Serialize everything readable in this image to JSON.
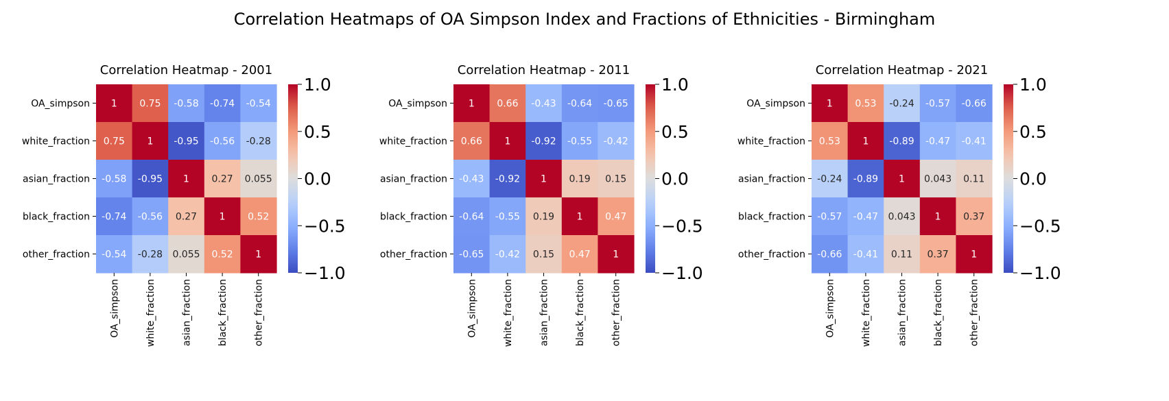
{
  "figure": {
    "suptitle": "Correlation Heatmaps of OA Simpson Index and Fractions of Ethnicities - Birmingham"
  },
  "chart_data": [
    {
      "type": "heatmap",
      "title": "Correlation Heatmap - 2001",
      "row_labels": [
        "OA_simpson",
        "white_fraction",
        "asian_fraction",
        "black_fraction",
        "other_fraction"
      ],
      "col_labels": [
        "OA_simpson",
        "white_fraction",
        "asian_fraction",
        "black_fraction",
        "other_fraction"
      ],
      "values": [
        [
          1,
          0.75,
          -0.58,
          -0.74,
          -0.54
        ],
        [
          0.75,
          1,
          -0.95,
          -0.56,
          -0.28
        ],
        [
          -0.58,
          -0.95,
          1,
          0.27,
          0.055
        ],
        [
          -0.74,
          -0.56,
          0.27,
          1,
          0.52
        ],
        [
          -0.54,
          -0.28,
          0.055,
          0.52,
          1
        ]
      ],
      "cell_labels": [
        [
          "1",
          "0.75",
          "-0.58",
          "-0.74",
          "-0.54"
        ],
        [
          "0.75",
          "1",
          "-0.95",
          "-0.56",
          "-0.28"
        ],
        [
          "-0.58",
          "-0.95",
          "1",
          "0.27",
          "0.055"
        ],
        [
          "-0.74",
          "-0.56",
          "0.27",
          "1",
          "0.52"
        ],
        [
          "-0.54",
          "-0.28",
          "0.055",
          "0.52",
          "1"
        ]
      ],
      "colorbar": {
        "vmin": -1.0,
        "vmax": 1.0,
        "ticks": [
          1.0,
          0.5,
          0.0,
          -0.5,
          -1.0
        ],
        "tick_labels": [
          "1.0",
          "0.5",
          "0.0",
          "−0.5",
          "−1.0"
        ]
      },
      "colormap": "coolwarm"
    },
    {
      "type": "heatmap",
      "title": "Correlation Heatmap - 2011",
      "row_labels": [
        "OA_simpson",
        "white_fraction",
        "asian_fraction",
        "black_fraction",
        "other_fraction"
      ],
      "col_labels": [
        "OA_simpson",
        "white_fraction",
        "asian_fraction",
        "black_fraction",
        "other_fraction"
      ],
      "values": [
        [
          1,
          0.66,
          -0.43,
          -0.64,
          -0.65
        ],
        [
          0.66,
          1,
          -0.92,
          -0.55,
          -0.42
        ],
        [
          -0.43,
          -0.92,
          1,
          0.19,
          0.15
        ],
        [
          -0.64,
          -0.55,
          0.19,
          1,
          0.47
        ],
        [
          -0.65,
          -0.42,
          0.15,
          0.47,
          1
        ]
      ],
      "cell_labels": [
        [
          "1",
          "0.66",
          "-0.43",
          "-0.64",
          "-0.65"
        ],
        [
          "0.66",
          "1",
          "-0.92",
          "-0.55",
          "-0.42"
        ],
        [
          "-0.43",
          "-0.92",
          "1",
          "0.19",
          "0.15"
        ],
        [
          "-0.64",
          "-0.55",
          "0.19",
          "1",
          "0.47"
        ],
        [
          "-0.65",
          "-0.42",
          "0.15",
          "0.47",
          "1"
        ]
      ],
      "colorbar": {
        "vmin": -1.0,
        "vmax": 1.0,
        "ticks": [
          1.0,
          0.5,
          0.0,
          -0.5,
          -1.0
        ],
        "tick_labels": [
          "1.0",
          "0.5",
          "0.0",
          "−0.5",
          "−1.0"
        ]
      },
      "colormap": "coolwarm"
    },
    {
      "type": "heatmap",
      "title": "Correlation Heatmap - 2021",
      "row_labels": [
        "OA_simpson",
        "white_fraction",
        "asian_fraction",
        "black_fraction",
        "other_fraction"
      ],
      "col_labels": [
        "OA_simpson",
        "white_fraction",
        "asian_fraction",
        "black_fraction",
        "other_fraction"
      ],
      "values": [
        [
          1,
          0.53,
          -0.24,
          -0.57,
          -0.66
        ],
        [
          0.53,
          1,
          -0.89,
          -0.47,
          -0.41
        ],
        [
          -0.24,
          -0.89,
          1,
          0.043,
          0.11
        ],
        [
          -0.57,
          -0.47,
          0.043,
          1,
          0.37
        ],
        [
          -0.66,
          -0.41,
          0.11,
          0.37,
          1
        ]
      ],
      "cell_labels": [
        [
          "1",
          "0.53",
          "-0.24",
          "-0.57",
          "-0.66"
        ],
        [
          "0.53",
          "1",
          "-0.89",
          "-0.47",
          "-0.41"
        ],
        [
          "-0.24",
          "-0.89",
          "1",
          "0.043",
          "0.11"
        ],
        [
          "-0.57",
          "-0.47",
          "0.043",
          "1",
          "0.37"
        ],
        [
          "-0.66",
          "-0.41",
          "0.11",
          "0.37",
          "1"
        ]
      ],
      "colorbar": {
        "vmin": -1.0,
        "vmax": 1.0,
        "ticks": [
          1.0,
          0.5,
          0.0,
          -0.5,
          -1.0
        ],
        "tick_labels": [
          "1.0",
          "0.5",
          "0.0",
          "−0.5",
          "−1.0"
        ]
      },
      "colormap": "coolwarm"
    }
  ]
}
